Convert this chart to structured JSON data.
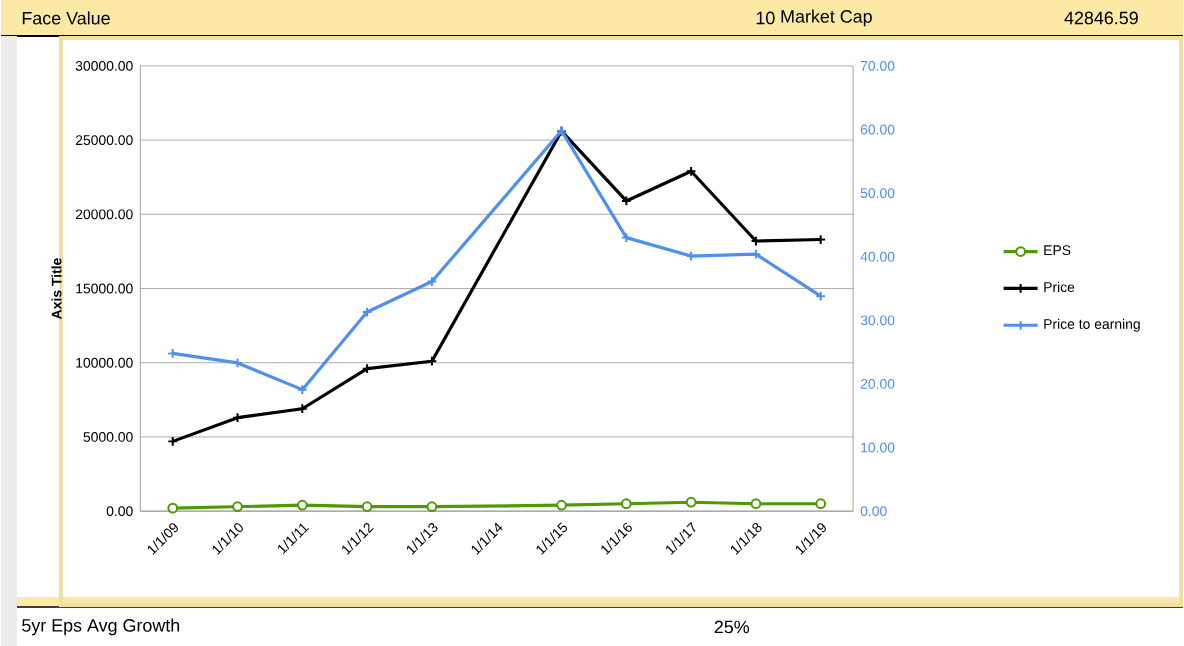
{
  "chart_data": {
    "type": "line",
    "ylabel": "Axis Title",
    "categories": [
      "1/1/09",
      "1/1/10",
      "1/1/11",
      "1/1/12",
      "1/1/13",
      "1/1/14",
      "1/1/15",
      "1/1/16",
      "1/1/17",
      "1/1/18",
      "1/1/19"
    ],
    "series": [
      {
        "name": "EPS",
        "color": "#4e9a06",
        "marker": "circle",
        "values": [
          200,
          300,
          400,
          300,
          300,
          null,
          400,
          500,
          600,
          500,
          500
        ]
      },
      {
        "name": "Price",
        "color": "#000000",
        "marker": "cross",
        "values": [
          4700,
          6300,
          6900,
          9600,
          10100,
          null,
          25600,
          20900,
          22900,
          18200,
          18300
        ]
      },
      {
        "name": "Price to earning",
        "color": "#4f8ff0",
        "marker": "cross",
        "axis": "y2",
        "values": [
          24.8,
          23.3,
          19.1,
          31.3,
          36.1,
          null,
          59.8,
          43.0,
          40.1,
          40.4,
          33.8
        ]
      }
    ],
    "ylim": [
      0,
      30000
    ],
    "yticks": [
      {
        "value": 0,
        "label": "0.00"
      },
      {
        "value": 5000,
        "label": "5000.00"
      },
      {
        "value": 10000,
        "label": "10000.00"
      },
      {
        "value": 15000,
        "label": "15000.00"
      },
      {
        "value": 20000,
        "label": "20000.00"
      },
      {
        "value": 25000,
        "label": "25000.00"
      },
      {
        "value": 30000,
        "label": "30000.00"
      }
    ],
    "y2lim": [
      0,
      70
    ],
    "y2ticks": [
      {
        "value": 0,
        "label": "0.00"
      },
      {
        "value": 10,
        "label": "10.00"
      },
      {
        "value": 20,
        "label": "20.00"
      },
      {
        "value": 30,
        "label": "30.00"
      },
      {
        "value": 40,
        "label": "40.00"
      },
      {
        "value": 50,
        "label": "50.00"
      },
      {
        "value": 60,
        "label": "60.00"
      },
      {
        "value": 70,
        "label": "70.00"
      }
    ],
    "grid": "y",
    "legend": "right",
    "annotations": [
      "Face Value",
      "10",
      "Market Cap",
      "42846.59",
      "5yr Eps Avg Growth",
      "25%"
    ]
  }
}
